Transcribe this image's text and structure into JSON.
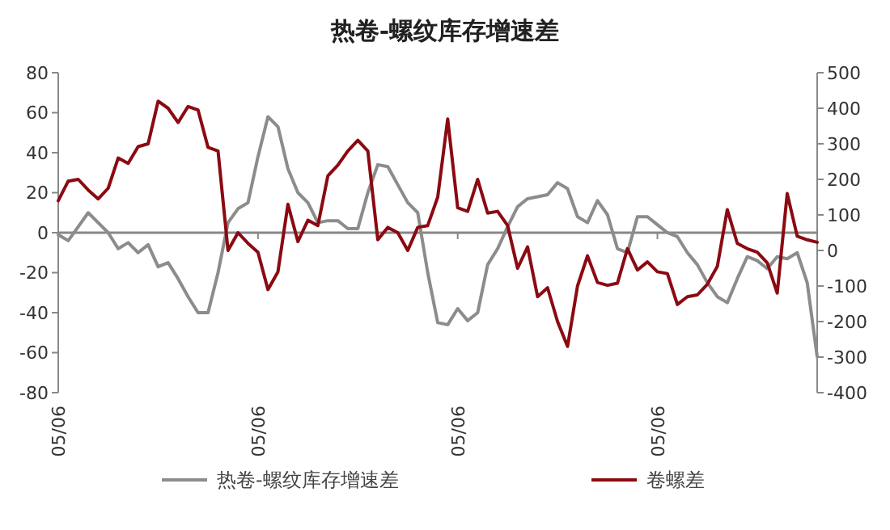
{
  "chart_data": {
    "type": "line",
    "title": "热卷-螺纹库存增速差",
    "categories": [
      "05/06",
      null,
      null,
      null,
      null,
      null,
      null,
      null,
      null,
      null,
      null,
      null,
      null,
      null,
      null,
      null,
      null,
      null,
      null,
      null,
      "05/06",
      null,
      null,
      null,
      null,
      null,
      null,
      null,
      null,
      null,
      null,
      null,
      null,
      null,
      null,
      null,
      null,
      null,
      null,
      null,
      "05/06",
      null,
      null,
      null,
      null,
      null,
      null,
      null,
      null,
      null,
      null,
      null,
      null,
      null,
      null,
      null,
      null,
      null,
      null,
      null,
      "05/06",
      null,
      null,
      null,
      null,
      null,
      null,
      null,
      null,
      null,
      null,
      null,
      null,
      null,
      null,
      null,
      null
    ],
    "ylim": [
      -80,
      80
    ],
    "yticks": [
      -80,
      -60,
      -40,
      -20,
      0,
      20,
      40,
      60,
      80
    ],
    "y2lim": [
      -400,
      500
    ],
    "y2ticks": [
      -400,
      -300,
      -200,
      -100,
      0,
      100,
      200,
      300,
      400,
      500
    ],
    "ref_lines": [
      {
        "axis": "y",
        "value": 0,
        "color": "#888888"
      }
    ],
    "legend": "bottom",
    "grid": false,
    "marker": "none",
    "line_style": "solid",
    "series": [
      {
        "name": "热卷-螺纹库存增速差",
        "color": "#8c8c8c",
        "values": [
          -1,
          -4,
          3,
          10,
          5,
          0,
          -8,
          -5,
          -10,
          -6,
          -17,
          -15,
          -23,
          -32,
          -40,
          -40,
          -20,
          5,
          12,
          15,
          38,
          58,
          53,
          32,
          20,
          15,
          5,
          6,
          6,
          2,
          2,
          20,
          34,
          33,
          24,
          15,
          10,
          -20,
          -45,
          -46,
          -38,
          -44,
          -40,
          -16,
          -8,
          3,
          13,
          17,
          18,
          19,
          25,
          22,
          8,
          5,
          16,
          9,
          -8,
          -10,
          8,
          8,
          4,
          0,
          -2,
          -10,
          -16,
          -25,
          -32,
          -35,
          -23,
          -12,
          -14,
          -18,
          -12,
          -13,
          -10,
          -25,
          -62
        ]
      },
      {
        "name": "卷螺差",
        "color": "#8b0a12",
        "axis": "y2",
        "values": [
          140,
          195,
          200,
          170,
          145,
          175,
          260,
          245,
          292,
          300,
          420,
          400,
          360,
          405,
          395,
          290,
          280,
          0,
          50,
          20,
          -5,
          -110,
          -60,
          130,
          25,
          85,
          70,
          210,
          240,
          280,
          310,
          280,
          30,
          65,
          50,
          0,
          65,
          70,
          150,
          370,
          120,
          110,
          200,
          105,
          110,
          70,
          -50,
          10,
          -130,
          -105,
          -200,
          -270,
          -100,
          -15,
          -90,
          -98,
          -92,
          5,
          -55,
          -32,
          -60,
          -65,
          -152,
          -130,
          -125,
          -95,
          -45,
          115,
          20,
          5,
          -5,
          -35,
          -120,
          160,
          40,
          30,
          23
        ]
      }
    ]
  }
}
